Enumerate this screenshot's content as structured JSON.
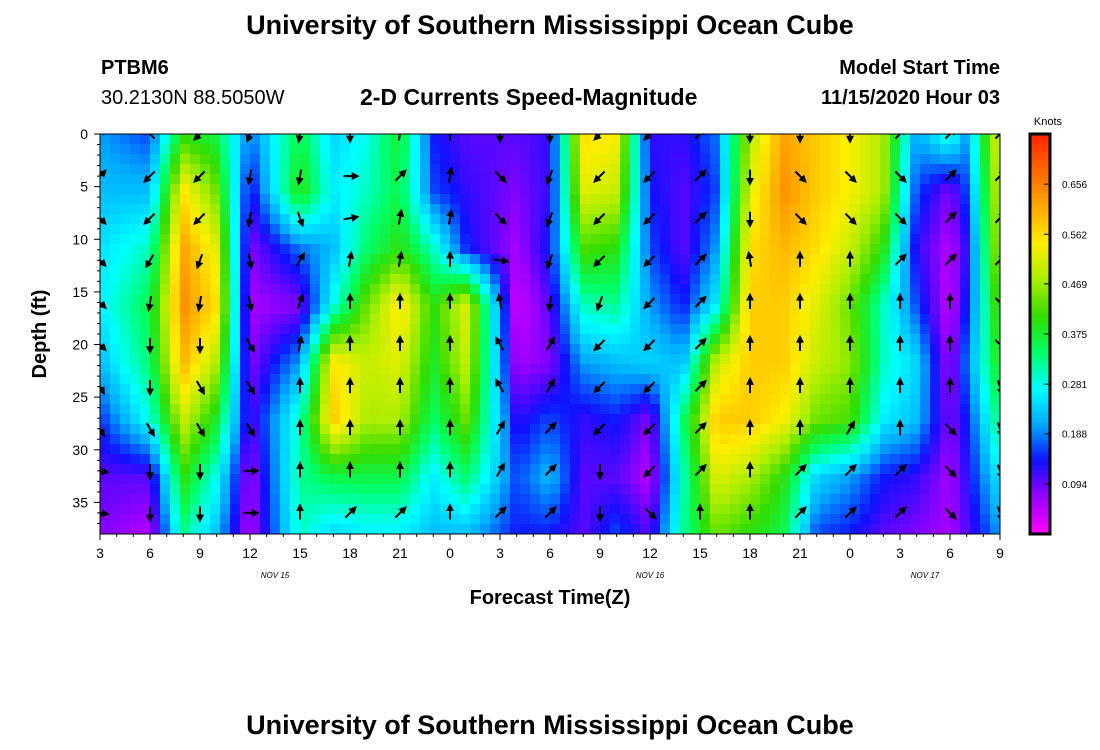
{
  "header": {
    "title": "University of Southern Mississippi Ocean Cube",
    "station": "PTBM6",
    "coords": "30.2130N 88.5050W",
    "subtitle": "2-D Currents Speed-Magnitude",
    "model_start_label": "Model Start Time",
    "model_start_value": "11/15/2020 Hour 03"
  },
  "footer": {
    "title": "University of Southern Mississippi Ocean Cube"
  },
  "chart_data": {
    "type": "heatmap",
    "xlabel": "Forecast Time(Z)",
    "ylabel": "Depth (ft)",
    "x_ticks": [
      "3",
      "6",
      "9",
      "12",
      "15",
      "18",
      "21",
      "0",
      "3",
      "6",
      "9",
      "12",
      "15",
      "18",
      "21",
      "0",
      "3",
      "6",
      "9"
    ],
    "x_tick_hours": [
      3,
      6,
      9,
      12,
      15,
      18,
      21,
      24,
      27,
      30,
      33,
      36,
      39,
      42,
      45,
      48,
      51,
      54,
      57
    ],
    "x_range_hours": [
      3,
      57
    ],
    "date_labels": [
      {
        "text": "NOV 15",
        "hour": 13.5
      },
      {
        "text": "NOV 16",
        "hour": 36
      },
      {
        "text": "NOV 17",
        "hour": 52.5
      }
    ],
    "y_ticks": [
      0,
      5,
      10,
      15,
      20,
      25,
      30,
      35
    ],
    "y_range": [
      0,
      38
    ],
    "y_inverted": true,
    "colorbar": {
      "label": "Knots",
      "ticks": [
        0.656,
        0.562,
        0.469,
        0.375,
        0.281,
        0.188,
        0.094
      ],
      "range": [
        0,
        0.75
      ],
      "colors": [
        "#ff00ff",
        "#9900ff",
        "#1010ff",
        "#00aaff",
        "#00ffff",
        "#00ff66",
        "#33dd00",
        "#aaee00",
        "#ffee00",
        "#ffaa00",
        "#ff6600",
        "#ff2200"
      ]
    },
    "columns": [
      {
        "hour": 3,
        "speeds": [
          0.2,
          0.22,
          0.25,
          0.26,
          0.22,
          0.15,
          0.1,
          0.08
        ]
      },
      {
        "hour": 6,
        "speeds": [
          0.16,
          0.22,
          0.3,
          0.36,
          0.34,
          0.28,
          0.1,
          0.05
        ]
      },
      {
        "hour": 8,
        "speeds": [
          0.4,
          0.55,
          0.62,
          0.64,
          0.6,
          0.5,
          0.4,
          0.32
        ]
      },
      {
        "hour": 10,
        "speeds": [
          0.36,
          0.44,
          0.52,
          0.56,
          0.48,
          0.38,
          0.28,
          0.22
        ]
      },
      {
        "hour": 12,
        "speeds": [
          0.18,
          0.12,
          0.08,
          0.06,
          0.08,
          0.1,
          0.06,
          0.05
        ]
      },
      {
        "hour": 15,
        "speeds": [
          0.36,
          0.4,
          0.18,
          0.08,
          0.2,
          0.3,
          0.32,
          0.3
        ]
      },
      {
        "hour": 17,
        "speeds": [
          0.24,
          0.26,
          0.22,
          0.28,
          0.55,
          0.58,
          0.36,
          0.24
        ]
      },
      {
        "hour": 19,
        "speeds": [
          0.28,
          0.3,
          0.34,
          0.44,
          0.5,
          0.48,
          0.36,
          0.26
        ]
      },
      {
        "hour": 21,
        "speeds": [
          0.38,
          0.36,
          0.4,
          0.56,
          0.52,
          0.48,
          0.36,
          0.26
        ]
      },
      {
        "hour": 23,
        "speeds": [
          0.14,
          0.16,
          0.3,
          0.4,
          0.38,
          0.34,
          0.26,
          0.22
        ]
      },
      {
        "hour": 25,
        "speeds": [
          0.1,
          0.12,
          0.14,
          0.52,
          0.5,
          0.44,
          0.34,
          0.22
        ]
      },
      {
        "hour": 28,
        "speeds": [
          0.1,
          0.08,
          0.06,
          0.03,
          0.06,
          0.12,
          0.16,
          0.14
        ]
      },
      {
        "hour": 30,
        "speeds": [
          0.12,
          0.12,
          0.14,
          0.1,
          0.08,
          0.16,
          0.22,
          0.14
        ]
      },
      {
        "hour": 32,
        "speeds": [
          0.56,
          0.52,
          0.42,
          0.3,
          0.2,
          0.12,
          0.1,
          0.1
        ]
      },
      {
        "hour": 34,
        "speeds": [
          0.54,
          0.5,
          0.4,
          0.32,
          0.22,
          0.14,
          0.1,
          0.16
        ]
      },
      {
        "hour": 36,
        "speeds": [
          0.12,
          0.14,
          0.16,
          0.2,
          0.24,
          0.08,
          0.05,
          0.1
        ]
      },
      {
        "hour": 38,
        "speeds": [
          0.12,
          0.1,
          0.1,
          0.14,
          0.22,
          0.34,
          0.3,
          0.32
        ]
      },
      {
        "hour": 40,
        "speeds": [
          0.18,
          0.16,
          0.2,
          0.26,
          0.5,
          0.58,
          0.52,
          0.44
        ]
      },
      {
        "hour": 42,
        "speeds": [
          0.48,
          0.52,
          0.56,
          0.58,
          0.58,
          0.58,
          0.48,
          0.4
        ]
      },
      {
        "hour": 44,
        "speeds": [
          0.62,
          0.64,
          0.6,
          0.58,
          0.58,
          0.54,
          0.4,
          0.36
        ]
      },
      {
        "hour": 46,
        "speeds": [
          0.58,
          0.58,
          0.56,
          0.52,
          0.5,
          0.44,
          0.24,
          0.16
        ]
      },
      {
        "hour": 48,
        "speeds": [
          0.54,
          0.54,
          0.5,
          0.44,
          0.46,
          0.42,
          0.2,
          0.14
        ]
      },
      {
        "hour": 50,
        "speeds": [
          0.48,
          0.48,
          0.4,
          0.3,
          0.3,
          0.26,
          0.14,
          0.1
        ]
      },
      {
        "hour": 52,
        "speeds": [
          0.2,
          0.16,
          0.12,
          0.16,
          0.24,
          0.22,
          0.12,
          0.08
        ]
      },
      {
        "hour": 54,
        "speeds": [
          0.3,
          0.08,
          0.05,
          0.04,
          0.06,
          0.08,
          0.06,
          0.06
        ]
      },
      {
        "hour": 55,
        "speeds": [
          0.2,
          0.16,
          0.12,
          0.14,
          0.18,
          0.14,
          0.12,
          0.1
        ]
      },
      {
        "hour": 57,
        "speeds": [
          0.54,
          0.52,
          0.5,
          0.44,
          0.4,
          0.34,
          0.26,
          0.2
        ]
      }
    ],
    "vectors": {
      "hours": [
        3,
        6,
        9,
        12,
        15,
        18,
        21,
        24,
        27,
        30,
        33,
        36,
        39,
        42,
        45,
        48,
        51,
        54,
        57
      ],
      "depths": [
        0,
        4,
        8,
        12,
        16,
        20,
        24,
        28,
        32,
        36
      ],
      "directions": [
        [
          45,
          315,
          225,
          200,
          190,
          180,
          10,
          0,
          180,
          180,
          225,
          225,
          45,
          180,
          180,
          180,
          45,
          45,
          45
        ],
        [
          45,
          225,
          225,
          190,
          190,
          90,
          45,
          10,
          135,
          200,
          225,
          225,
          45,
          180,
          135,
          135,
          135,
          45,
          45
        ],
        [
          135,
          225,
          225,
          190,
          160,
          80,
          10,
          10,
          135,
          200,
          225,
          225,
          45,
          180,
          135,
          135,
          135,
          45,
          45
        ],
        [
          135,
          210,
          200,
          170,
          30,
          10,
          10,
          0,
          100,
          200,
          225,
          225,
          45,
          350,
          0,
          0,
          45,
          45,
          45
        ],
        [
          135,
          190,
          190,
          170,
          20,
          0,
          0,
          0,
          350,
          190,
          200,
          225,
          45,
          0,
          0,
          0,
          0,
          0,
          135
        ],
        [
          135,
          180,
          180,
          150,
          10,
          0,
          0,
          0,
          330,
          30,
          225,
          225,
          45,
          0,
          0,
          0,
          0,
          0,
          135
        ],
        [
          150,
          180,
          150,
          150,
          0,
          0,
          0,
          0,
          330,
          30,
          225,
          225,
          45,
          0,
          0,
          0,
          0,
          0,
          160
        ],
        [
          150,
          150,
          150,
          150,
          0,
          0,
          0,
          0,
          30,
          45,
          225,
          225,
          45,
          0,
          0,
          30,
          0,
          135,
          160
        ],
        [
          100,
          180,
          180,
          90,
          0,
          0,
          0,
          0,
          30,
          45,
          180,
          225,
          45,
          0,
          45,
          45,
          45,
          135,
          160
        ],
        [
          100,
          180,
          180,
          90,
          0,
          45,
          45,
          0,
          45,
          45,
          180,
          135,
          0,
          0,
          45,
          45,
          45,
          135,
          160
        ]
      ]
    }
  }
}
